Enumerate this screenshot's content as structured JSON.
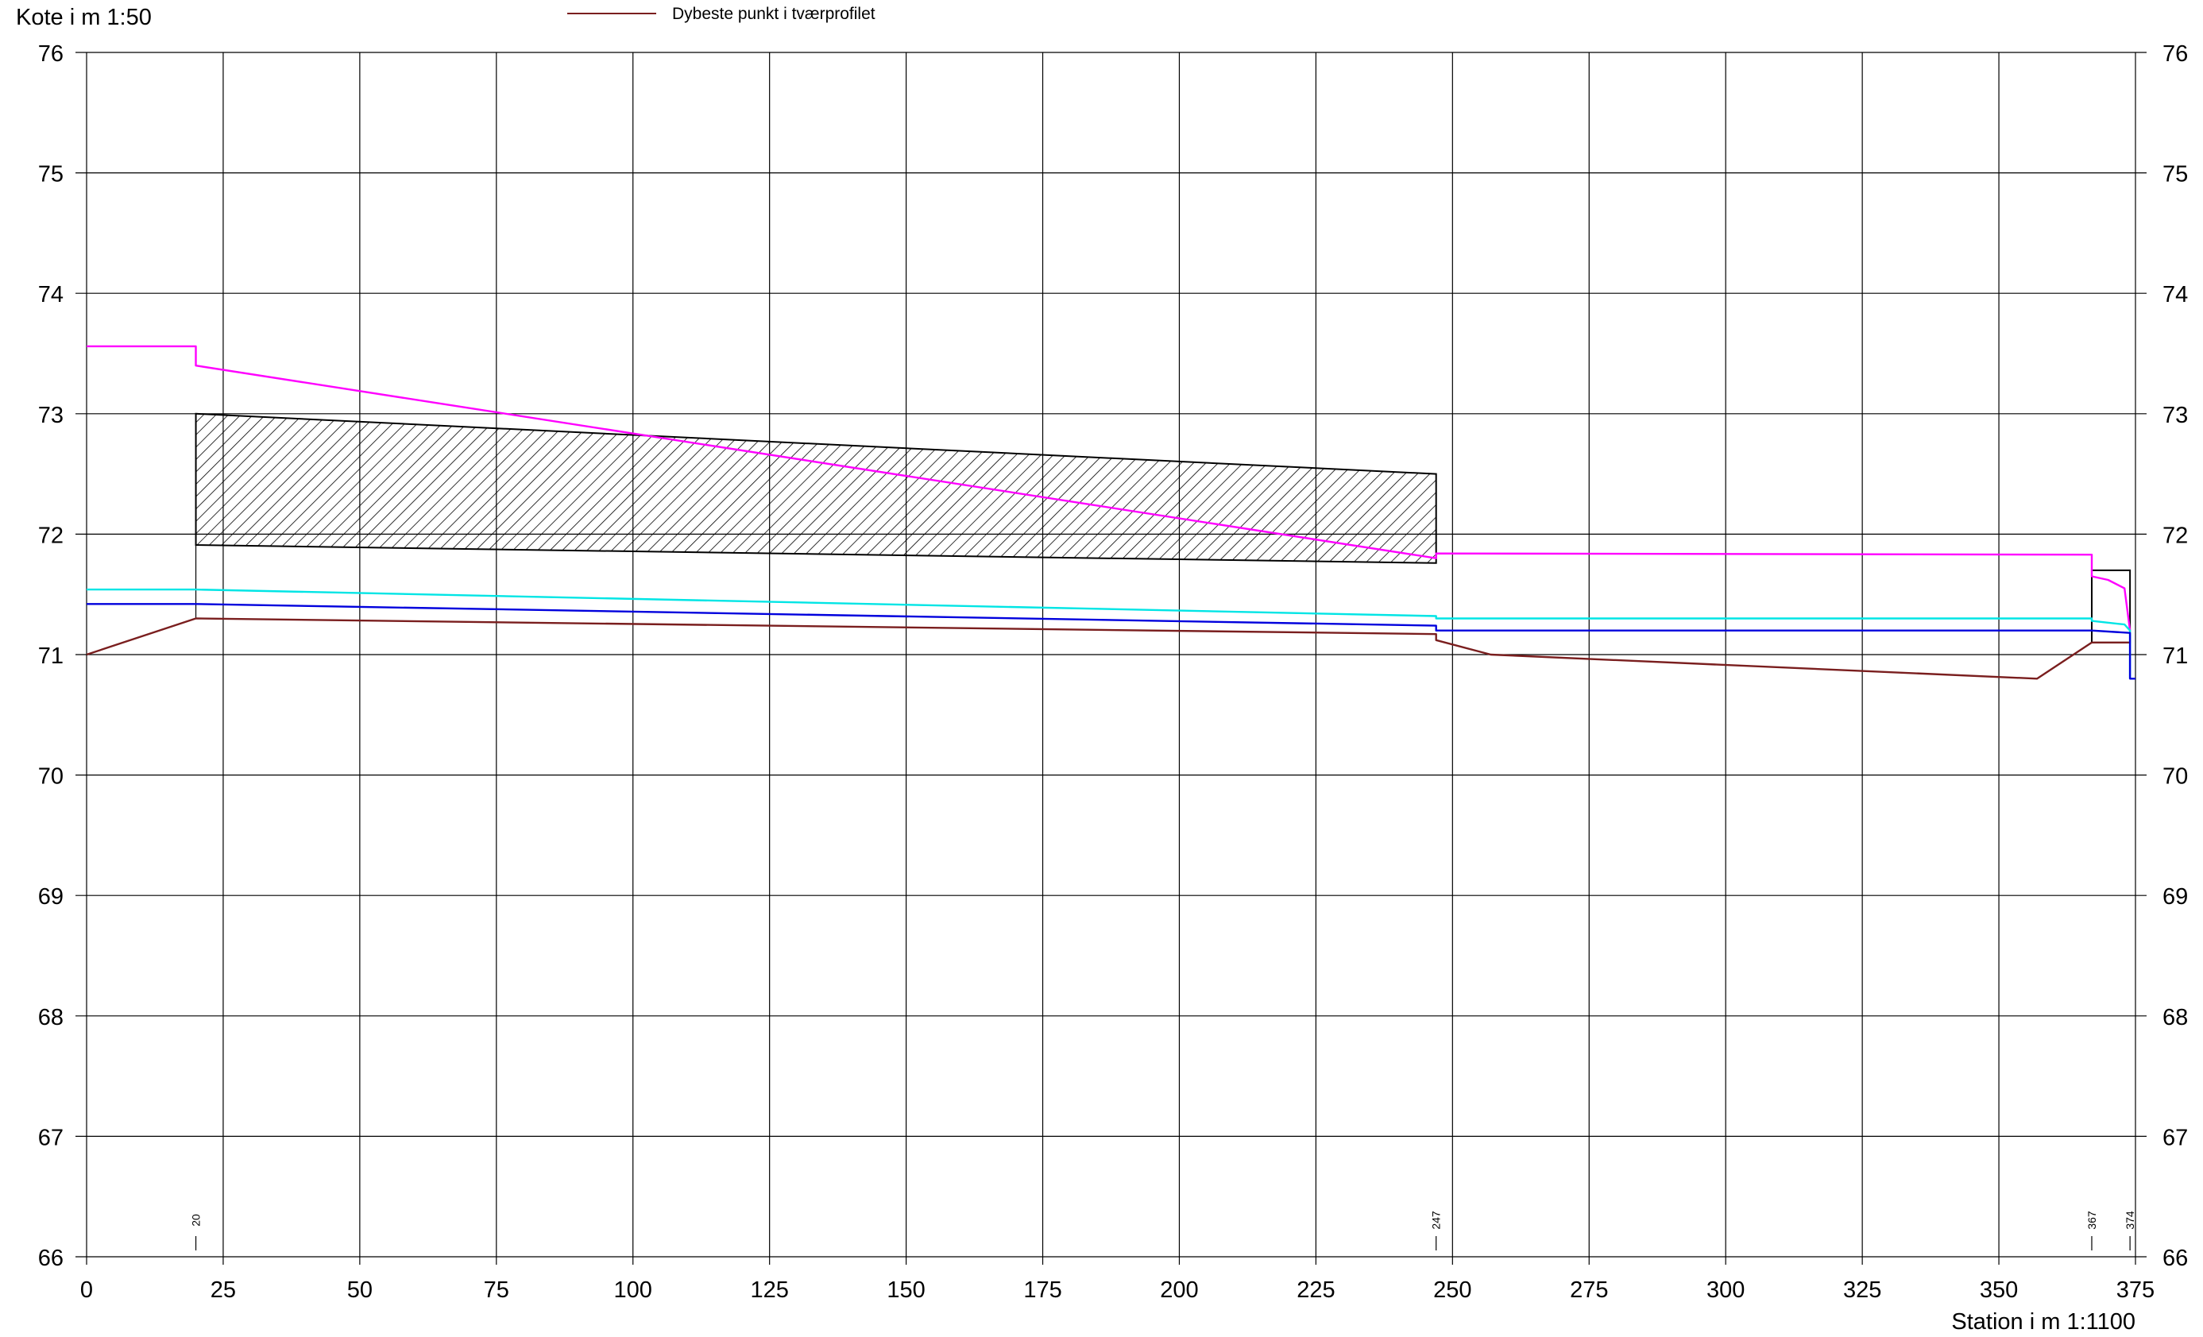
{
  "chart_data": {
    "type": "line",
    "ylabel": "Kote i m 1:50",
    "xlabel": "Station i m  1:1100",
    "xlim": [
      0,
      375
    ],
    "ylim": [
      66,
      76
    ],
    "grid": true,
    "x_ticks": [
      0,
      25,
      50,
      75,
      100,
      125,
      150,
      175,
      200,
      225,
      250,
      275,
      300,
      325,
      350,
      375
    ],
    "y_ticks": [
      66,
      67,
      68,
      69,
      70,
      71,
      72,
      73,
      74,
      75,
      76
    ],
    "y_tick_labels": [
      "66",
      "67",
      "68",
      "69",
      "70",
      "71",
      "72",
      "73",
      "74",
      "75",
      "76"
    ],
    "x_tick_labels": [
      "0",
      "25",
      "50",
      "75",
      "100",
      "125",
      "150",
      "175",
      "200",
      "225",
      "250",
      "275",
      "300",
      "325",
      "350",
      "375"
    ],
    "legend": {
      "placement": "top-center",
      "entries": [
        {
          "label": "Dybeste punkt i tværprofilet",
          "color": "#7a1e1e"
        }
      ]
    },
    "profile_stations": [
      {
        "x": 20,
        "label": "20"
      },
      {
        "x": 247,
        "label": "247"
      },
      {
        "x": 367,
        "label": "367"
      },
      {
        "x": 374,
        "label": "374"
      }
    ],
    "structures": [
      {
        "x0": 20,
        "x1": 247,
        "top": [
          73.0,
          72.5
        ],
        "bottom": [
          71.91,
          71.76
        ],
        "hatched": true
      },
      {
        "x0": 367,
        "x1": 374,
        "top": [
          71.7,
          71.7
        ],
        "bottom": [
          71.1,
          71.1
        ],
        "hatched": false
      }
    ],
    "series": [
      {
        "name": "Dybeste punkt i tværprofilet",
        "color": "#7a1e1e",
        "points": [
          [
            0,
            71.0
          ],
          [
            20,
            71.3
          ],
          [
            247,
            71.17
          ],
          [
            247,
            71.12
          ],
          [
            257,
            71.0
          ],
          [
            357,
            70.8
          ],
          [
            367,
            71.1
          ],
          [
            374,
            71.1
          ]
        ]
      },
      {
        "color": "#ff00ff",
        "points": [
          [
            0,
            73.56
          ],
          [
            20,
            73.56
          ],
          [
            20,
            73.4
          ],
          [
            247,
            71.8
          ],
          [
            247,
            71.84
          ],
          [
            367,
            71.83
          ],
          [
            367,
            71.65
          ],
          [
            370,
            71.62
          ],
          [
            373,
            71.55
          ],
          [
            374,
            71.2
          ]
        ]
      },
      {
        "color": "#00e5e5",
        "points": [
          [
            0,
            71.54
          ],
          [
            20,
            71.54
          ],
          [
            247,
            71.32
          ],
          [
            247,
            71.3
          ],
          [
            367,
            71.3
          ],
          [
            367,
            71.28
          ],
          [
            373,
            71.25
          ],
          [
            374,
            71.2
          ],
          [
            374,
            70.8
          ]
        ]
      },
      {
        "color": "#0000dd",
        "points": [
          [
            0,
            71.42
          ],
          [
            20,
            71.42
          ],
          [
            247,
            71.24
          ],
          [
            247,
            71.2
          ],
          [
            367,
            71.2
          ],
          [
            374,
            71.18
          ],
          [
            374,
            70.8
          ],
          [
            375,
            70.8
          ]
        ]
      }
    ]
  }
}
